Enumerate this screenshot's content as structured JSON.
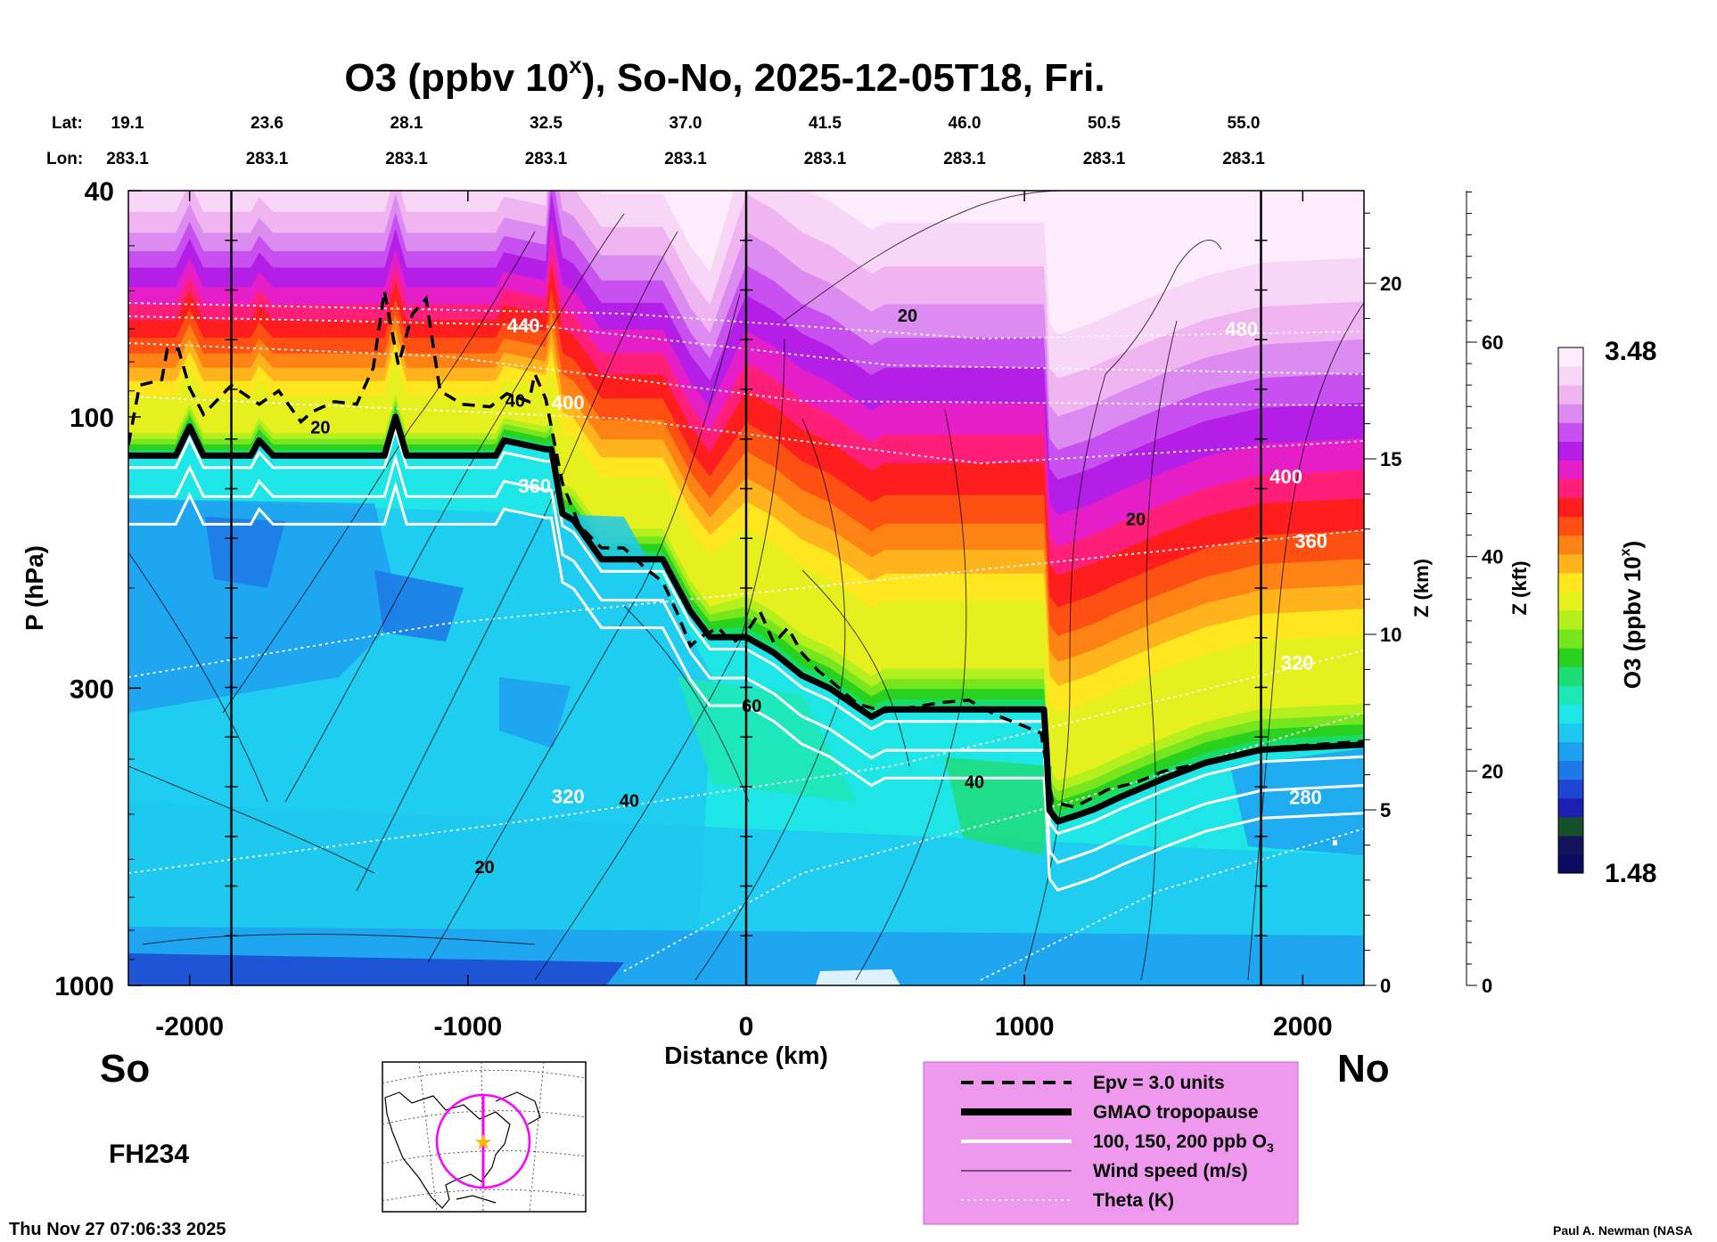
{
  "chart_data": {
    "type": "heatmap",
    "title": "O3 (ppbv 10",
    "title_sup": "x",
    "title_rest": "), So-No, 2025-12-05T18, Fri.",
    "lat_label": "Lat:",
    "lon_label": "Lon:",
    "lats": [
      "19.1",
      "23.6",
      "28.1",
      "32.5",
      "37.0",
      "41.5",
      "46.0",
      "50.5",
      "55.0"
    ],
    "lons": [
      "283.1",
      "283.1",
      "283.1",
      "283.1",
      "283.1",
      "283.1",
      "283.1",
      "283.1",
      "283.1"
    ],
    "xlabel": "Distance (km)",
    "ylabel": "P (hPa)",
    "x_ticks": [
      -2000,
      -1000,
      0,
      1000,
      2000
    ],
    "x_range": [
      -2220,
      2220
    ],
    "y_scale": "log",
    "y_range_hPa": [
      1000,
      40
    ],
    "y_ticks": [
      40,
      100,
      300,
      1000
    ],
    "z_km_label": "Z (km)",
    "z_km_ticks": [
      0,
      5,
      10,
      15,
      20
    ],
    "z_kft_label": "Z (kft)",
    "z_kft_ticks": [
      0,
      20,
      40,
      60
    ],
    "vertical_markers_km": [
      -1850,
      0,
      1850
    ],
    "left_end": "So",
    "right_end": "No",
    "forecast_hour": "FH234",
    "timestamp": "Thu Nov 27 07:06:33 2025",
    "credit": "Paul A. Newman (NASA",
    "colorbar": {
      "label": "O3 (ppbv 10",
      "label_sup": "x",
      "label_rest": ")",
      "max": "3.48",
      "min": "1.48",
      "colors": [
        "#0a0a60",
        "#14145a",
        "#145028",
        "#1e1eb4",
        "#1e46d2",
        "#1e78e6",
        "#1ea0f0",
        "#1ec8f0",
        "#1ee6e6",
        "#1ee6b4",
        "#1edc78",
        "#28d21e",
        "#78e61e",
        "#b4f01e",
        "#e6f01e",
        "#ffe61e",
        "#ffb41e",
        "#ff8214",
        "#ff5014",
        "#ff1e1e",
        "#ff1e78",
        "#e61ec8",
        "#b41ee6",
        "#c850f0",
        "#dc8cf0",
        "#f0b4f0",
        "#f8d6f8",
        "#fcecfc"
      ]
    },
    "tropopause_hPa": [
      [
        -2220,
        117
      ],
      [
        -2050,
        117
      ],
      [
        -2000,
        104
      ],
      [
        -1950,
        117
      ],
      [
        -1780,
        117
      ],
      [
        -1750,
        110
      ],
      [
        -1700,
        117
      ],
      [
        -1300,
        117
      ],
      [
        -1260,
        100
      ],
      [
        -1220,
        117
      ],
      [
        -900,
        117
      ],
      [
        -870,
        110
      ],
      [
        -720,
        114
      ],
      [
        -700,
        114
      ],
      [
        -660,
        148
      ],
      [
        -620,
        152
      ],
      [
        -520,
        178
      ],
      [
        -300,
        178
      ],
      [
        -200,
        220
      ],
      [
        -130,
        244
      ],
      [
        0,
        244
      ],
      [
        100,
        260
      ],
      [
        200,
        285
      ],
      [
        300,
        300
      ],
      [
        450,
        337
      ],
      [
        500,
        327
      ],
      [
        1030,
        327
      ],
      [
        1070,
        327
      ],
      [
        1080,
        390
      ],
      [
        1090,
        492
      ],
      [
        1120,
        515
      ],
      [
        1200,
        500
      ],
      [
        1250,
        490
      ],
      [
        1350,
        465
      ],
      [
        1500,
        433
      ],
      [
        1650,
        406
      ],
      [
        1850,
        385
      ],
      [
        2220,
        377
      ]
    ],
    "epv_hPa": [
      [
        -2220,
        112
      ],
      [
        -2180,
        88
      ],
      [
        -2100,
        86
      ],
      [
        -2080,
        76
      ],
      [
        -2040,
        76
      ],
      [
        -2000,
        89
      ],
      [
        -1950,
        99
      ],
      [
        -1850,
        88
      ],
      [
        -1750,
        95
      ],
      [
        -1680,
        90
      ],
      [
        -1600,
        102
      ],
      [
        -1560,
        98
      ],
      [
        -1480,
        94
      ],
      [
        -1400,
        95
      ],
      [
        -1340,
        82
      ],
      [
        -1300,
        60
      ],
      [
        -1250,
        81
      ],
      [
        -1200,
        66
      ],
      [
        -1150,
        62
      ],
      [
        -1100,
        90
      ],
      [
        -1020,
        95
      ],
      [
        -920,
        96
      ],
      [
        -860,
        91
      ],
      [
        -780,
        94
      ],
      [
        -760,
        84
      ],
      [
        -720,
        93
      ],
      [
        -660,
        131
      ],
      [
        -600,
        155
      ],
      [
        -520,
        170
      ],
      [
        -440,
        170
      ],
      [
        -360,
        185
      ],
      [
        -300,
        195
      ],
      [
        -250,
        220
      ],
      [
        -200,
        253
      ],
      [
        -160,
        243
      ],
      [
        -100,
        235
      ],
      [
        -50,
        250
      ],
      [
        0,
        240
      ],
      [
        50,
        220
      ],
      [
        100,
        250
      ],
      [
        150,
        235
      ],
      [
        200,
        260
      ],
      [
        260,
        280
      ],
      [
        300,
        290
      ],
      [
        400,
        320
      ],
      [
        500,
        330
      ],
      [
        700,
        318
      ],
      [
        800,
        315
      ],
      [
        900,
        335
      ],
      [
        1000,
        350
      ],
      [
        1060,
        360
      ],
      [
        1100,
        475
      ],
      [
        1180,
        486
      ],
      [
        1300,
        452
      ],
      [
        1400,
        440
      ],
      [
        1500,
        420
      ],
      [
        1600,
        410
      ],
      [
        1700,
        400
      ],
      [
        1850,
        383
      ],
      [
        2220,
        372
      ]
    ],
    "theta_labels": [
      [
        "440",
        -800,
        71
      ],
      [
        "400",
        -640,
        97
      ],
      [
        "360",
        -760,
        136
      ],
      [
        "320",
        -640,
        478
      ],
      [
        "480",
        1780,
        72
      ],
      [
        "400",
        1940,
        131
      ],
      [
        "360",
        2030,
        170
      ],
      [
        "320",
        1980,
        278
      ],
      [
        "280",
        2010,
        480
      ]
    ],
    "wind_labels": [
      [
        "20",
        -1530,
        107
      ],
      [
        "40",
        -830,
        96
      ],
      [
        "20",
        580,
        68
      ],
      [
        "20",
        1400,
        155
      ],
      [
        "60",
        20,
        330
      ],
      [
        "40",
        -420,
        485
      ],
      [
        "20",
        -940,
        635
      ],
      [
        "40",
        820,
        450
      ]
    ],
    "legend": [
      {
        "label": "Epv = 3.0 units",
        "style": "dashed"
      },
      {
        "label": "GMAO tropopause",
        "style": "thick"
      },
      {
        "label": "100, 150, 200 ppb O",
        "sub": "3",
        "style": "white"
      },
      {
        "label": "Wind speed (m/s)",
        "style": "thin"
      },
      {
        "label": "Theta (K)",
        "style": "dotted"
      }
    ]
  }
}
